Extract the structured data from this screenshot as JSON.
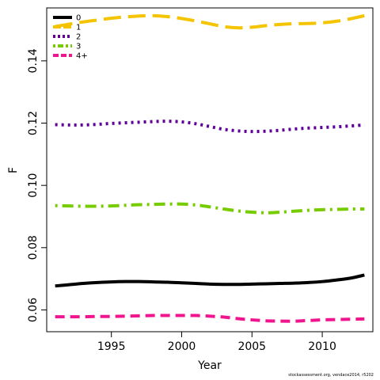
{
  "chart_data": {
    "type": "line",
    "xlabel": "Year",
    "ylabel": "F",
    "xlim": [
      1990.4,
      2013.6
    ],
    "ylim": [
      0.053,
      0.157
    ],
    "x_ticks": [
      1995,
      2000,
      2005,
      2010
    ],
    "y_ticks": [
      0.06,
      0.08,
      0.1,
      0.12,
      0.14
    ],
    "y_tick_labels": [
      "0.06",
      "0.08",
      "0.10",
      "0.12",
      "0.14"
    ],
    "legend_position": "top-left",
    "x": [
      1991,
      1992,
      1993,
      1994,
      1995,
      1996,
      1997,
      1998,
      1999,
      2000,
      2001,
      2002,
      2003,
      2004,
      2005,
      2006,
      2007,
      2008,
      2009,
      2010,
      2011,
      2012,
      2013
    ],
    "series": [
      {
        "name": "0",
        "color": "#000000",
        "dash": "solid",
        "values": [
          0.0677,
          0.0681,
          0.0685,
          0.0688,
          0.069,
          0.0691,
          0.0691,
          0.069,
          0.0689,
          0.0687,
          0.0685,
          0.0683,
          0.0682,
          0.0682,
          0.0683,
          0.0684,
          0.0685,
          0.0686,
          0.0688,
          0.0691,
          0.0696,
          0.0702,
          0.0712
        ]
      },
      {
        "name": "1",
        "color": "#F5C400",
        "dash": "longdash",
        "values": [
          0.151,
          0.1518,
          0.1525,
          0.1531,
          0.1537,
          0.1541,
          0.1544,
          0.1545,
          0.1542,
          0.1536,
          0.1528,
          0.1519,
          0.151,
          0.1506,
          0.1508,
          0.1513,
          0.1517,
          0.1519,
          0.152,
          0.1522,
          0.1527,
          0.1535,
          0.1545
        ]
      },
      {
        "name": "2",
        "color": "#5E0099",
        "dash": "dotted",
        "values": [
          0.1195,
          0.1194,
          0.1194,
          0.1196,
          0.1199,
          0.1201,
          0.1203,
          0.1205,
          0.1206,
          0.1204,
          0.1198,
          0.1189,
          0.118,
          0.1175,
          0.1173,
          0.1174,
          0.1177,
          0.1181,
          0.1184,
          0.1186,
          0.1188,
          0.1191,
          0.1194
        ]
      },
      {
        "name": "3",
        "color": "#77CC00",
        "dash": "dotdash",
        "values": [
          0.0935,
          0.0934,
          0.0933,
          0.0933,
          0.0934,
          0.0936,
          0.0938,
          0.0939,
          0.094,
          0.094,
          0.0937,
          0.0931,
          0.0924,
          0.0918,
          0.0914,
          0.0912,
          0.0914,
          0.0917,
          0.092,
          0.0922,
          0.0923,
          0.0924,
          0.0924
        ]
      },
      {
        "name": "4+",
        "color": "#F0158F",
        "dash": "dashed",
        "values": [
          0.0578,
          0.0578,
          0.0578,
          0.0579,
          0.0579,
          0.058,
          0.0581,
          0.0582,
          0.0582,
          0.0582,
          0.0582,
          0.058,
          0.0577,
          0.0572,
          0.0568,
          0.0565,
          0.0564,
          0.0564,
          0.0566,
          0.0568,
          0.0569,
          0.057,
          0.0571
        ]
      }
    ]
  },
  "watermark": "stockassessment.org, vendace2014, r5202"
}
